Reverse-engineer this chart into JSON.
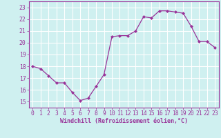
{
  "x": [
    0,
    1,
    2,
    3,
    4,
    5,
    6,
    7,
    8,
    9,
    10,
    11,
    12,
    13,
    14,
    15,
    16,
    17,
    18,
    19,
    20,
    21,
    22,
    23
  ],
  "y": [
    18.0,
    17.8,
    17.2,
    16.6,
    16.6,
    15.8,
    15.1,
    15.3,
    16.3,
    17.3,
    20.5,
    20.6,
    20.6,
    21.0,
    22.2,
    22.1,
    22.7,
    22.7,
    22.6,
    22.5,
    21.4,
    20.1,
    20.1,
    19.6
  ],
  "line_color": "#993399",
  "marker": "D",
  "markersize": 2.0,
  "linewidth": 0.9,
  "xlim": [
    -0.5,
    23.5
  ],
  "ylim": [
    14.5,
    23.5
  ],
  "yticks": [
    15,
    16,
    17,
    18,
    19,
    20,
    21,
    22,
    23
  ],
  "xticks": [
    0,
    1,
    2,
    3,
    4,
    5,
    6,
    7,
    8,
    9,
    10,
    11,
    12,
    13,
    14,
    15,
    16,
    17,
    18,
    19,
    20,
    21,
    22,
    23
  ],
  "xlabel": "Windchill (Refroidissement éolien,°C)",
  "bgcolor": "#cff0f0",
  "grid_color": "#ffffff",
  "tick_color": "#993399",
  "label_color": "#993399",
  "xlabel_fontsize": 6.0,
  "tick_fontsize": 5.8
}
